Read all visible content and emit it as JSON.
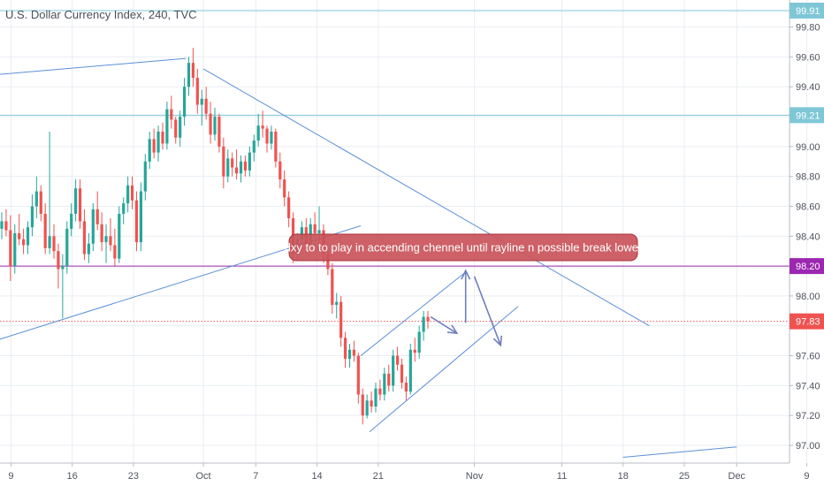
{
  "header": {
    "title": "U.S. Dollar Currency Index, 240, TVC"
  },
  "annotation": {
    "text": "dxy to to play in accending chennel until rayline n possible break lower"
  },
  "colors": {
    "up": "#26a69a",
    "down": "#ef5350",
    "trend": "#5b8fd9",
    "h_line": "#7fc7d6",
    "purple": "#9c27b0",
    "price": "#ef5350",
    "grid": "#e9edf2",
    "note_bg": "#c9545a",
    "note_border": "#a8353b"
  },
  "chart_data": {
    "type": "candlestick",
    "title": "U.S. Dollar Currency Index, 240, TVC",
    "ylim": [
      96.93,
      99.95
    ],
    "y_ticks": [
      99.8,
      99.6,
      99.4,
      99.2,
      99.0,
      98.8,
      98.6,
      98.4,
      98.2,
      98.0,
      97.8,
      97.6,
      97.4,
      97.2,
      97.0
    ],
    "x_tick_labels": [
      "9",
      "16",
      "23",
      "Oct",
      "7",
      "14",
      "21",
      "Nov",
      "11",
      "18",
      "25",
      "Dec",
      "9"
    ],
    "price_lines": [
      {
        "value": 99.91,
        "label": "99.91",
        "style": "solid",
        "color": "#7fc7d6"
      },
      {
        "value": 99.21,
        "label": "99.21",
        "style": "solid",
        "color": "#7fc7d6"
      },
      {
        "value": 98.2,
        "label": "98.20",
        "style": "solid",
        "color": "#9c27b0"
      },
      {
        "value": 97.83,
        "label": "97.83",
        "style": "dotted",
        "color": "#ef5350"
      }
    ],
    "ohlc": [
      [
        98.45,
        98.56,
        98.38,
        98.5
      ],
      [
        98.5,
        98.58,
        98.4,
        98.44
      ],
      [
        98.44,
        98.54,
        98.1,
        98.2
      ],
      [
        98.2,
        98.48,
        98.15,
        98.42
      ],
      [
        98.42,
        98.55,
        98.34,
        98.38
      ],
      [
        98.38,
        98.45,
        98.28,
        98.34
      ],
      [
        98.34,
        98.5,
        98.28,
        98.46
      ],
      [
        98.46,
        98.68,
        98.4,
        98.6
      ],
      [
        98.6,
        98.8,
        98.52,
        98.7
      ],
      [
        98.7,
        98.74,
        98.5,
        98.55
      ],
      [
        98.55,
        98.62,
        98.28,
        98.32
      ],
      [
        98.32,
        99.1,
        98.28,
        98.4
      ],
      [
        98.4,
        98.48,
        98.25,
        98.3
      ],
      [
        98.3,
        98.35,
        98.05,
        98.18
      ],
      [
        98.18,
        98.28,
        97.85,
        98.2
      ],
      [
        98.2,
        98.5,
        98.15,
        98.45
      ],
      [
        98.45,
        98.62,
        98.4,
        98.55
      ],
      [
        98.55,
        98.78,
        98.5,
        98.72
      ],
      [
        98.72,
        98.78,
        98.45,
        98.5
      ],
      [
        98.5,
        98.58,
        98.24,
        98.28
      ],
      [
        98.28,
        98.42,
        98.22,
        98.35
      ],
      [
        98.35,
        98.62,
        98.3,
        98.58
      ],
      [
        98.58,
        98.7,
        98.44,
        98.48
      ],
      [
        98.48,
        98.56,
        98.3,
        98.36
      ],
      [
        98.36,
        98.48,
        98.22,
        98.4
      ],
      [
        98.4,
        98.52,
        98.3,
        98.34
      ],
      [
        98.34,
        98.45,
        98.2,
        98.25
      ],
      [
        98.25,
        98.6,
        98.22,
        98.55
      ],
      [
        98.55,
        98.66,
        98.48,
        98.62
      ],
      [
        98.62,
        98.8,
        98.56,
        98.74
      ],
      [
        98.74,
        98.8,
        98.58,
        98.64
      ],
      [
        98.64,
        98.7,
        98.3,
        98.36
      ],
      [
        98.36,
        98.76,
        98.3,
        98.7
      ],
      [
        98.7,
        98.95,
        98.64,
        98.9
      ],
      [
        98.9,
        99.1,
        98.85,
        99.05
      ],
      [
        99.05,
        99.12,
        98.92,
        98.96
      ],
      [
        98.96,
        99.14,
        98.9,
        99.1
      ],
      [
        99.1,
        99.16,
        98.98,
        99.02
      ],
      [
        99.02,
        99.3,
        98.98,
        99.25
      ],
      [
        99.25,
        99.34,
        99.12,
        99.18
      ],
      [
        99.18,
        99.2,
        99.02,
        99.06
      ],
      [
        99.06,
        99.24,
        99.0,
        99.2
      ],
      [
        99.2,
        99.46,
        99.14,
        99.4
      ],
      [
        99.4,
        99.6,
        99.34,
        99.56
      ],
      [
        99.56,
        99.66,
        99.4,
        99.46
      ],
      [
        99.46,
        99.52,
        99.22,
        99.28
      ],
      [
        99.28,
        99.38,
        99.14,
        99.32
      ],
      [
        99.32,
        99.4,
        99.18,
        99.22
      ],
      [
        99.22,
        99.3,
        99.02,
        99.08
      ],
      [
        99.08,
        99.26,
        99.04,
        99.2
      ],
      [
        99.2,
        99.22,
        98.96,
        99.0
      ],
      [
        99.0,
        99.06,
        98.72,
        98.8
      ],
      [
        98.8,
        98.98,
        98.76,
        98.92
      ],
      [
        98.92,
        98.96,
        98.8,
        98.86
      ],
      [
        98.86,
        98.98,
        98.78,
        98.82
      ],
      [
        98.82,
        98.94,
        98.76,
        98.9
      ],
      [
        98.9,
        98.94,
        98.8,
        98.84
      ],
      [
        98.84,
        99.0,
        98.8,
        98.96
      ],
      [
        98.96,
        99.08,
        98.9,
        99.04
      ],
      [
        99.04,
        99.22,
        99.0,
        99.14
      ],
      [
        99.14,
        99.24,
        99.06,
        99.12
      ],
      [
        99.12,
        99.14,
        98.96,
        99.02
      ],
      [
        99.02,
        99.14,
        98.98,
        99.1
      ],
      [
        99.1,
        99.12,
        98.86,
        98.9
      ],
      [
        98.9,
        98.96,
        98.72,
        98.78
      ],
      [
        98.78,
        98.84,
        98.6,
        98.66
      ],
      [
        98.66,
        98.7,
        98.46,
        98.52
      ],
      [
        98.52,
        98.56,
        98.22,
        98.28
      ],
      [
        98.28,
        98.42,
        98.24,
        98.38
      ],
      [
        98.38,
        98.5,
        98.32,
        98.46
      ],
      [
        98.46,
        98.52,
        98.3,
        98.34
      ],
      [
        98.34,
        98.52,
        98.3,
        98.48
      ],
      [
        98.48,
        98.56,
        98.4,
        98.42
      ],
      [
        98.42,
        98.6,
        98.36,
        98.44
      ],
      [
        98.44,
        98.48,
        98.22,
        98.28
      ],
      [
        98.28,
        98.32,
        98.14,
        98.18
      ],
      [
        98.18,
        98.22,
        97.88,
        97.94
      ],
      [
        97.94,
        98.02,
        97.85,
        97.96
      ],
      [
        97.96,
        98.0,
        97.66,
        97.72
      ],
      [
        97.72,
        97.76,
        97.52,
        97.58
      ],
      [
        97.58,
        97.68,
        97.52,
        97.64
      ],
      [
        97.64,
        97.7,
        97.56,
        97.6
      ],
      [
        97.6,
        97.62,
        97.28,
        97.34
      ],
      [
        97.34,
        97.38,
        97.14,
        97.2
      ],
      [
        97.2,
        97.34,
        97.18,
        97.3
      ],
      [
        97.3,
        97.36,
        97.22,
        97.26
      ],
      [
        97.26,
        97.42,
        97.22,
        97.38
      ],
      [
        97.38,
        97.44,
        97.3,
        97.34
      ],
      [
        97.34,
        97.52,
        97.3,
        97.48
      ],
      [
        97.48,
        97.54,
        97.36,
        97.4
      ],
      [
        97.4,
        97.64,
        97.36,
        97.6
      ],
      [
        97.6,
        97.66,
        97.5,
        97.54
      ],
      [
        97.54,
        97.58,
        97.38,
        97.42
      ],
      [
        97.42,
        97.46,
        97.3,
        97.36
      ],
      [
        97.36,
        97.68,
        97.34,
        97.64
      ],
      [
        97.64,
        97.72,
        97.56,
        97.62
      ],
      [
        97.62,
        97.8,
        97.58,
        97.76
      ],
      [
        97.76,
        97.9,
        97.7,
        97.86
      ],
      [
        97.86,
        97.9,
        97.78,
        97.83
      ]
    ],
    "trendlines": [
      {
        "name": "upper-left-line",
        "points": [
          [
            "Aug 30",
            99.44
          ],
          [
            "Sep 29",
            99.59
          ]
        ]
      },
      {
        "name": "descending-rayline",
        "points": [
          [
            "Oct 1",
            99.52
          ],
          [
            "Nov 21",
            97.8
          ]
        ]
      },
      {
        "name": "long-support-line",
        "points": [
          [
            "Aug 30",
            97.55
          ],
          [
            "Oct 19",
            98.47
          ]
        ]
      },
      {
        "name": "channel-upper",
        "points": [
          [
            "Oct 19",
            97.6
          ],
          [
            "Oct 31",
            98.16
          ]
        ]
      },
      {
        "name": "channel-lower",
        "points": [
          [
            "Oct 20",
            97.09
          ],
          [
            "Nov 6",
            97.93
          ]
        ]
      },
      {
        "name": "bottom-line",
        "points": [
          [
            "Nov 18",
            96.92
          ],
          [
            "Dec 1",
            96.99
          ]
        ]
      }
    ],
    "arrows": [
      {
        "name": "arrow-1",
        "points": [
          [
            "Oct 27",
            97.86
          ],
          [
            "Oct 30",
            97.75
          ]
        ]
      },
      {
        "name": "arrow-2",
        "points": [
          [
            "Oct 31",
            97.82
          ],
          [
            "Oct 31",
            98.17
          ]
        ]
      },
      {
        "name": "arrow-3",
        "points": [
          [
            "Nov 1",
            98.13
          ],
          [
            "Nov 4",
            97.67
          ]
        ]
      }
    ]
  }
}
